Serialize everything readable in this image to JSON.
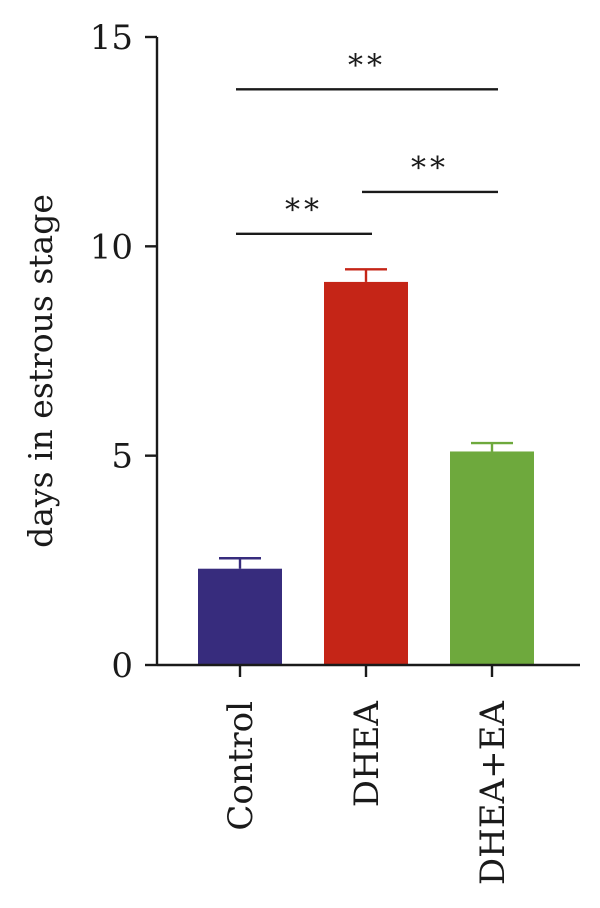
{
  "chart_data": {
    "type": "bar",
    "categories": [
      "Control",
      "DHEA",
      "DHEA+EA"
    ],
    "values": [
      2.3,
      9.15,
      5.1
    ],
    "errors": [
      0.25,
      0.3,
      0.2
    ],
    "colors": [
      "#372c7d",
      "#c52517",
      "#6ea93d"
    ],
    "ylabel": "days in estrous stage",
    "xlabel": "",
    "ylim": [
      0,
      15
    ],
    "yticks": [
      0,
      5,
      10,
      15
    ],
    "yticklabels": [
      "0",
      "5",
      "10",
      "15"
    ],
    "significance": [
      {
        "from": 0,
        "to": 1,
        "label": "**",
        "y": 10.3
      },
      {
        "from": 1,
        "to": 2,
        "label": "**",
        "y": 11.3
      },
      {
        "from": 0,
        "to": 2,
        "label": "**",
        "y": 13.75
      }
    ]
  }
}
